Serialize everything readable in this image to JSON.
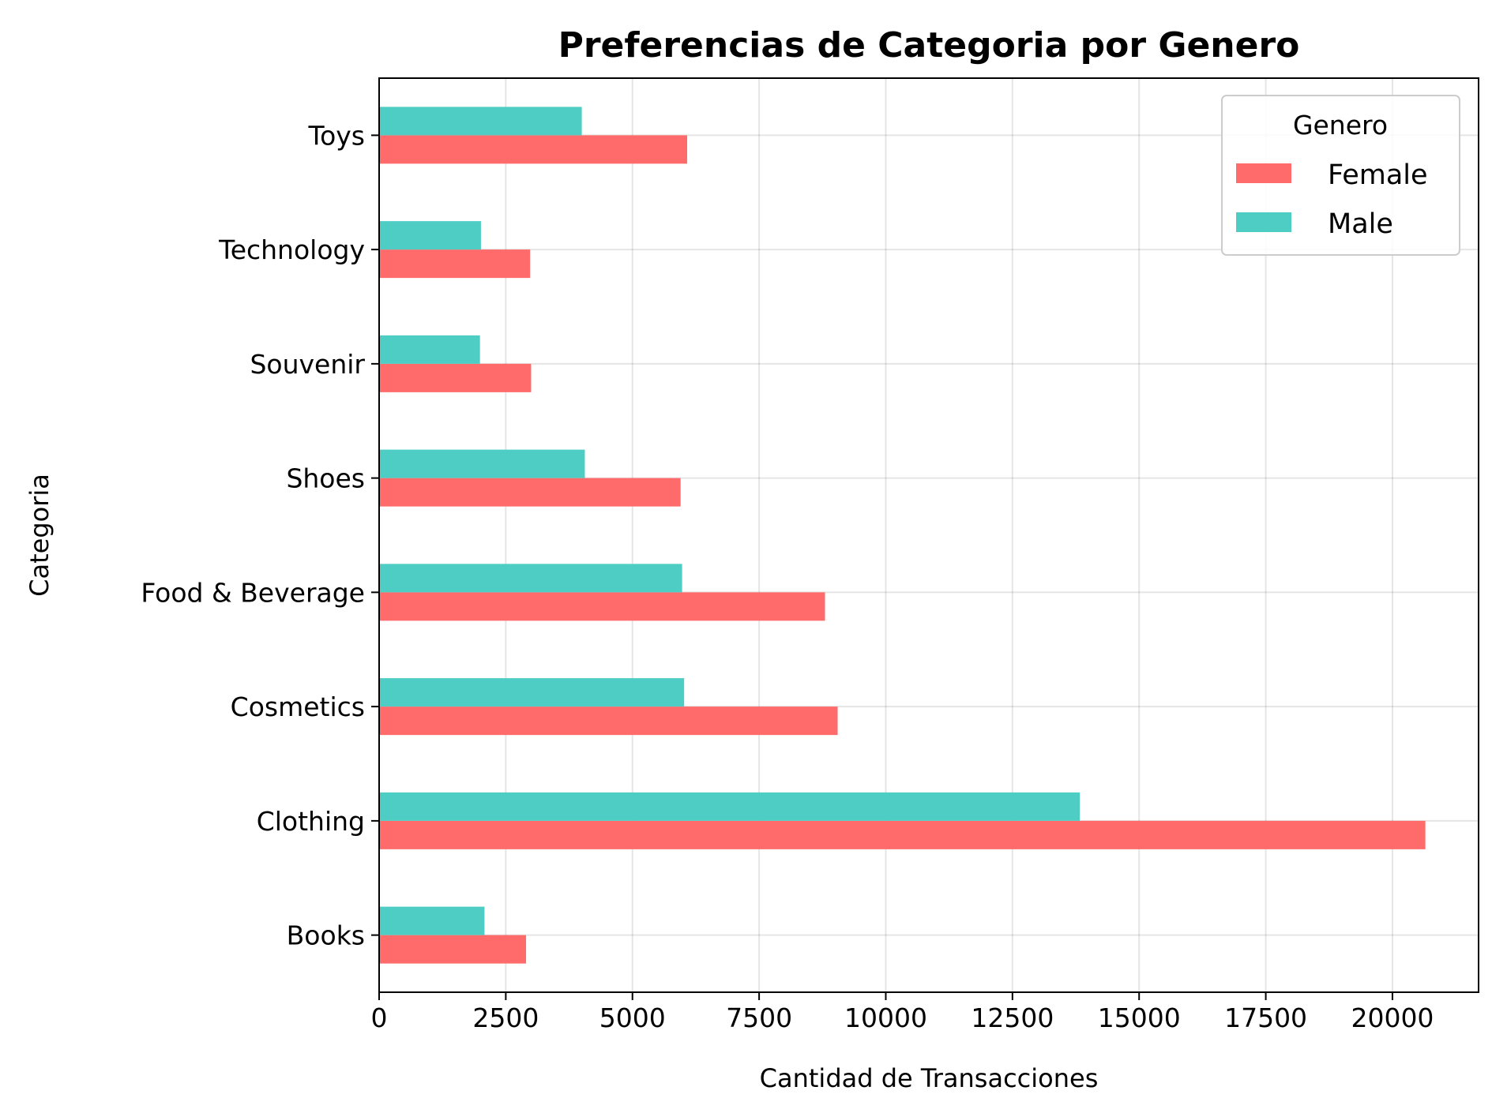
{
  "chart_data": {
    "type": "bar",
    "orientation": "horizontal",
    "title": "Preferencias de Categoria por Genero",
    "xlabel": "Cantidad de Transacciones",
    "ylabel": "Categoria",
    "categories": [
      "Books",
      "Clothing",
      "Cosmetics",
      "Food & Beverage",
      "Shoes",
      "Souvenir",
      "Technology",
      "Toys"
    ],
    "series": [
      {
        "name": "Female",
        "color": "#ff6b6b",
        "values": [
          2900,
          20650,
          9050,
          8800,
          5950,
          3000,
          2980,
          6080
        ]
      },
      {
        "name": "Male",
        "color": "#4ecdc4",
        "values": [
          2080,
          13830,
          6020,
          5980,
          4060,
          1990,
          2010,
          4000
        ]
      }
    ],
    "xlim": [
      0,
      21700
    ],
    "xticks": [
      0,
      2500,
      5000,
      7500,
      10000,
      12500,
      15000,
      17500,
      20000
    ],
    "grid": true,
    "legend": {
      "title": "Genero",
      "placement": "top-right"
    }
  }
}
